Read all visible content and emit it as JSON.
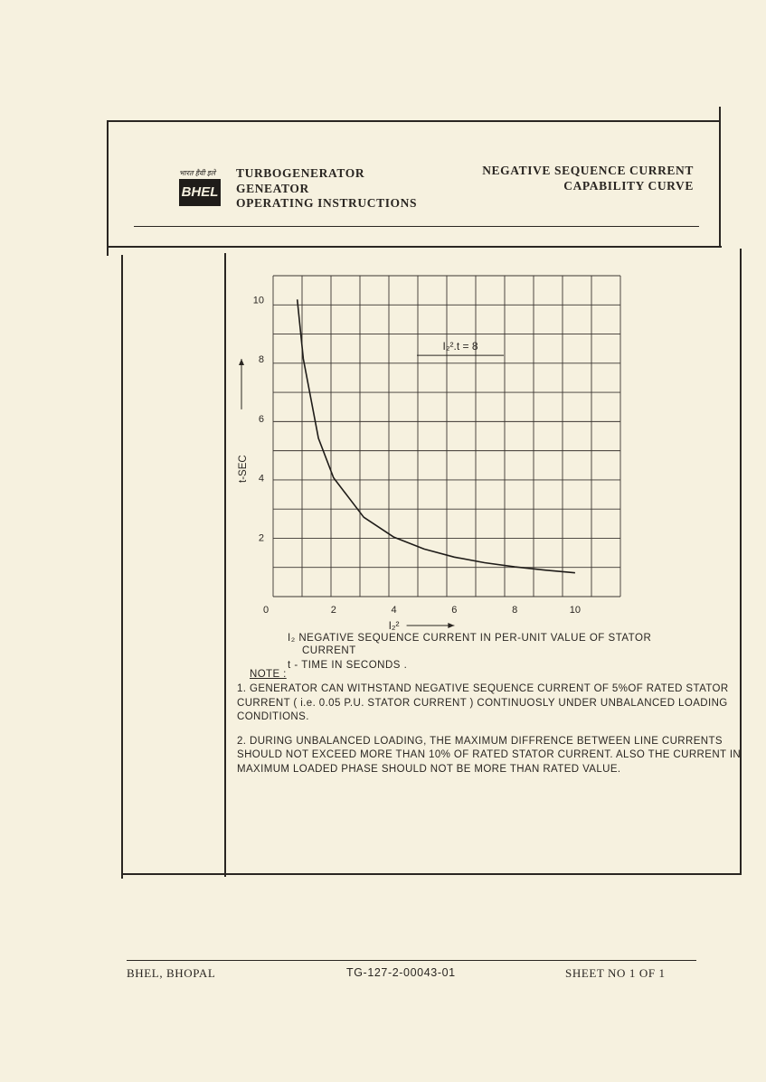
{
  "header": {
    "logo_caption": "भारत हैवी इले",
    "logo_mark": "BHEL",
    "title_lines": [
      "TURBOGENERATOR",
      "GENEATOR",
      "OPERATING INSTRUCTIONS"
    ],
    "subject_lines": [
      "NEGATIVE SEQUENCE CURRENT",
      "CAPABILITY CURVE"
    ]
  },
  "chart_data": {
    "type": "line",
    "title": "",
    "xlabel": "I₂²",
    "ylabel": "t-SEC",
    "xlim": [
      0,
      11.5
    ],
    "ylim": [
      0,
      10.8
    ],
    "x_ticks": [
      "0",
      "2",
      "4",
      "6",
      "8",
      "10"
    ],
    "y_ticks": [
      "2",
      "4",
      "6",
      "8",
      "10"
    ],
    "grid": true,
    "annotation": "I₂².t = 8",
    "series": [
      {
        "x": [
          0.8,
          1.0,
          1.5,
          2.0,
          3.0,
          4.0,
          5.0,
          6.0,
          7.0,
          8.0,
          9.0,
          10.0
        ],
        "values": [
          10.0,
          8.0,
          5.33,
          4.0,
          2.67,
          2.0,
          1.6,
          1.33,
          1.14,
          1.0,
          0.89,
          0.8
        ]
      }
    ]
  },
  "legend": {
    "i2_symbol": "I₂",
    "i2_text": "NEGATIVE  SEQUENCE  CURRENT IN  PER-UNIT  VALUE OF  STATOR",
    "i2_text_cont": "CURRENT",
    "t_text": "t - TIME IN SECONDS ."
  },
  "notes": {
    "heading": "NOTE :",
    "items": [
      "1. GENERATOR  CAN WITHSTAND  NEGATIVE  SEQUENCE  CURRENT OF 5%OF  RATED STATOR  CURRENT ( i.e. 0.05 P.U.  STATOR  CURRENT )  CONTINUOSLY  UNDER UNBALANCED  LOADING  CONDITIONS.",
      "2. DURING  UNBALANCED  LOADING, THE  MAXIMUM DIFFRENCE  BETWEEN LINE CURRENTS SHOULD  NOT  EXCEED MORE  THAN 10% OF  RATED  STATOR CURRENT. ALSO  THE  CURRENT  IN  MAXIMUM  LOADED  PHASE  SHOULD  NOT  BE MORE THAN  RATED VALUE."
    ]
  },
  "footer": {
    "company": "BHEL, BHOPAL",
    "doc_no": "TG-127-2-00043-01",
    "sheet": "SHEET NO 1 OF 1"
  }
}
